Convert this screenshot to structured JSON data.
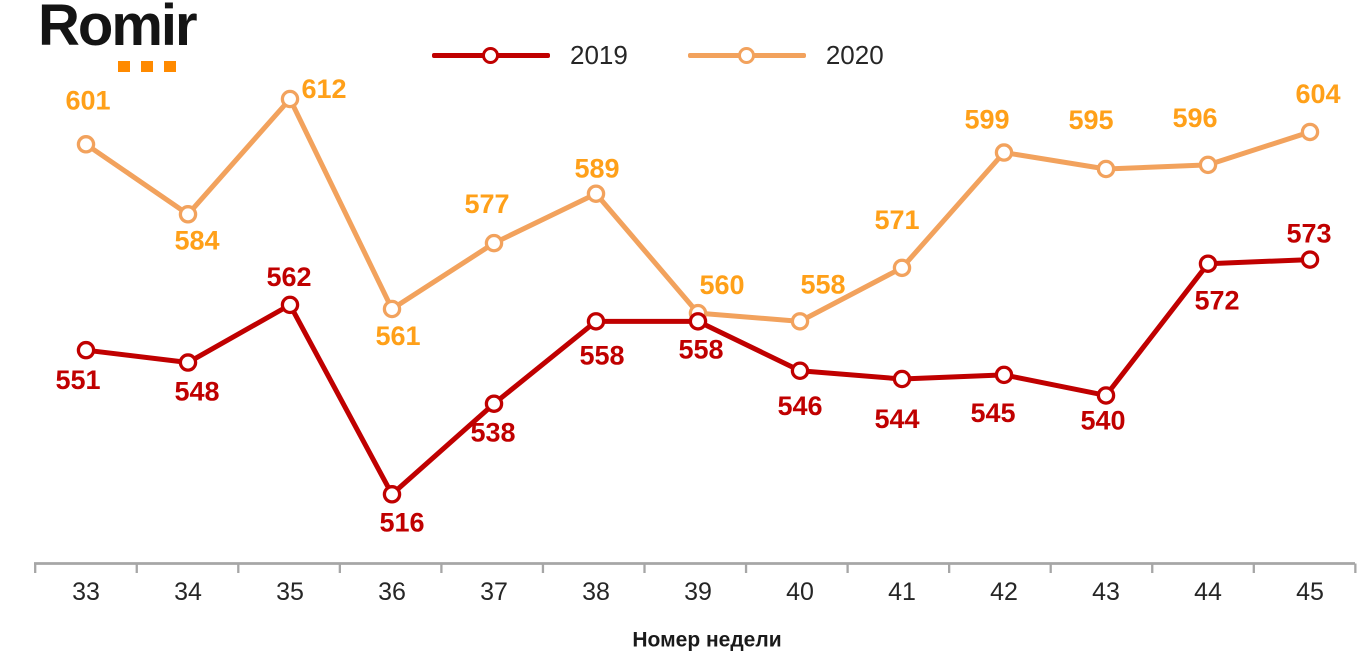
{
  "brand": {
    "name": "Romir",
    "text_color": "#141414",
    "dot_color": "#FF8A00"
  },
  "legend": {
    "items": [
      {
        "label": "2019",
        "color": "#C00000"
      },
      {
        "label": "2020",
        "color": "#F2A25D"
      }
    ]
  },
  "chart_data": {
    "type": "line",
    "title": "",
    "xlabel": "Номер недели",
    "ylabel": "",
    "x": [
      33,
      34,
      35,
      36,
      37,
      38,
      39,
      40,
      41,
      42,
      43,
      44,
      45
    ],
    "series": [
      {
        "name": "2019",
        "color": "#C00000",
        "label_color": "#C00000",
        "values": [
          551,
          548,
          562,
          516,
          538,
          558,
          558,
          546,
          544,
          545,
          540,
          572,
          573
        ],
        "label_offsets": [
          [
            -8,
            30
          ],
          [
            9,
            29
          ],
          [
            -1,
            -28
          ],
          [
            10,
            28
          ],
          [
            -1,
            29
          ],
          [
            6,
            34
          ],
          [
            3,
            28
          ],
          [
            0,
            35
          ],
          [
            -5,
            40
          ],
          [
            -11,
            38
          ],
          [
            -3,
            25
          ],
          [
            9,
            37
          ],
          [
            -1,
            -26
          ]
        ]
      },
      {
        "name": "2020",
        "color": "#F2A25D",
        "label_color": "#FFA019",
        "values": [
          601,
          584,
          612,
          561,
          577,
          589,
          560,
          558,
          571,
          599,
          595,
          596,
          604
        ],
        "label_offsets": [
          [
            2,
            -44
          ],
          [
            9,
            26
          ],
          [
            34,
            -10
          ],
          [
            6,
            27
          ],
          [
            -7,
            -39
          ],
          [
            1,
            -25
          ],
          [
            24,
            -28
          ],
          [
            23,
            -37
          ],
          [
            -5,
            -48
          ],
          [
            -17,
            -33
          ],
          [
            -15,
            -49
          ],
          [
            -13,
            -47
          ],
          [
            8,
            -38
          ]
        ]
      }
    ],
    "approx_value_range": [
      516,
      612
    ],
    "y_axis_visible": false,
    "grid": false,
    "marker": "circle-open",
    "axis_color": "#A6A6A6",
    "tick_label_color": "#262626",
    "legend_position": "top-center"
  }
}
